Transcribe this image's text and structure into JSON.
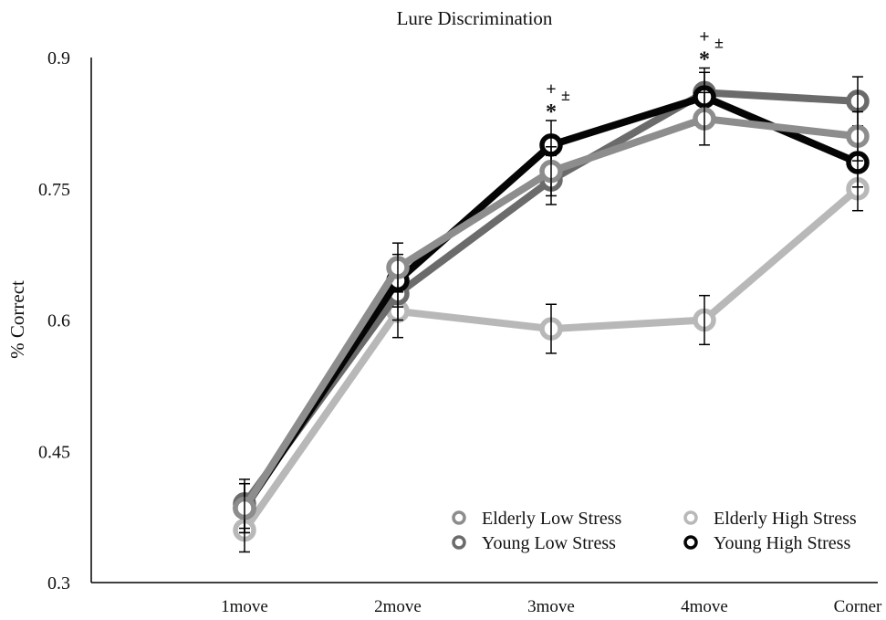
{
  "chart_data": {
    "type": "line",
    "title": "Lure Discrimination",
    "xlabel": "",
    "ylabel": "% Correct",
    "ylim": [
      0.3,
      0.9
    ],
    "yticks": [
      "0.9",
      "0.75",
      "0.6",
      "0.45",
      "0.3"
    ],
    "categories": [
      "1move",
      "2move",
      "3move",
      "4move",
      "Corner"
    ],
    "grid": false,
    "legend_position": "bottom-right",
    "series": [
      {
        "name": "Elderly High Stress",
        "color": "#b8b8b8",
        "values": [
          0.36,
          0.61,
          0.59,
          0.6,
          0.75
        ],
        "error": [
          0.025,
          0.03,
          0.028,
          0.028,
          0.025
        ]
      },
      {
        "name": "Young Low Stress",
        "color": "#6b6b6b",
        "values": [
          0.39,
          0.63,
          0.76,
          0.86,
          0.85
        ],
        "error": [
          0.028,
          0.03,
          0.028,
          0.028,
          0.028
        ]
      },
      {
        "name": "Young High Stress",
        "color": "#050505",
        "values": [
          0.385,
          0.645,
          0.8,
          0.855,
          0.78
        ],
        "error": [
          0.028,
          0.03,
          0.028,
          0.028,
          0.028
        ]
      },
      {
        "name": "Elderly Low Stress",
        "color": "#8d8d8d",
        "values": [
          0.385,
          0.66,
          0.77,
          0.83,
          0.81
        ],
        "error": [
          0.028,
          0.028,
          0.028,
          0.03,
          0.028
        ]
      }
    ],
    "legend_order": [
      "Elderly Low Stress",
      "Elderly High Stress",
      "Young Low Stress",
      "Young High Stress"
    ],
    "annotations": [
      {
        "category": "3move",
        "symbols": [
          "+",
          "±",
          "*"
        ]
      },
      {
        "category": "4move",
        "symbols": [
          "+",
          "±",
          "*"
        ]
      }
    ]
  }
}
